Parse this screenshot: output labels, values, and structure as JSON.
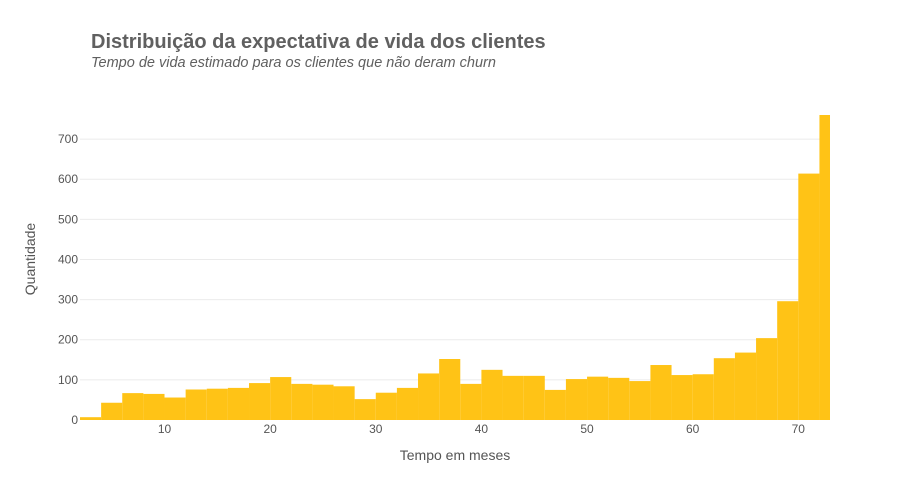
{
  "chart_data": {
    "type": "bar",
    "title": "Distribuição da expectativa de vida dos clientes",
    "subtitle": "Tempo de vida estimado para os clientes que não deram churn",
    "xlabel": "Tempo em meses",
    "ylabel": "Quantidade",
    "xlim": [
      2,
      73
    ],
    "ylim": [
      0,
      760
    ],
    "x_ticks": [
      10,
      20,
      30,
      40,
      50,
      60,
      70
    ],
    "y_ticks": [
      0,
      100,
      200,
      300,
      400,
      500,
      600,
      700
    ],
    "grid": true,
    "bar_color": "#FFC316",
    "bin_start": 2,
    "bin_width": 2,
    "values": [
      7,
      43,
      67,
      65,
      56,
      76,
      78,
      80,
      92,
      107,
      90,
      88,
      84,
      52,
      68,
      80,
      116,
      152,
      90,
      125,
      110,
      110,
      75,
      102,
      108,
      105,
      97,
      137,
      112,
      114,
      154,
      168,
      204,
      296,
      614,
      760
    ]
  }
}
